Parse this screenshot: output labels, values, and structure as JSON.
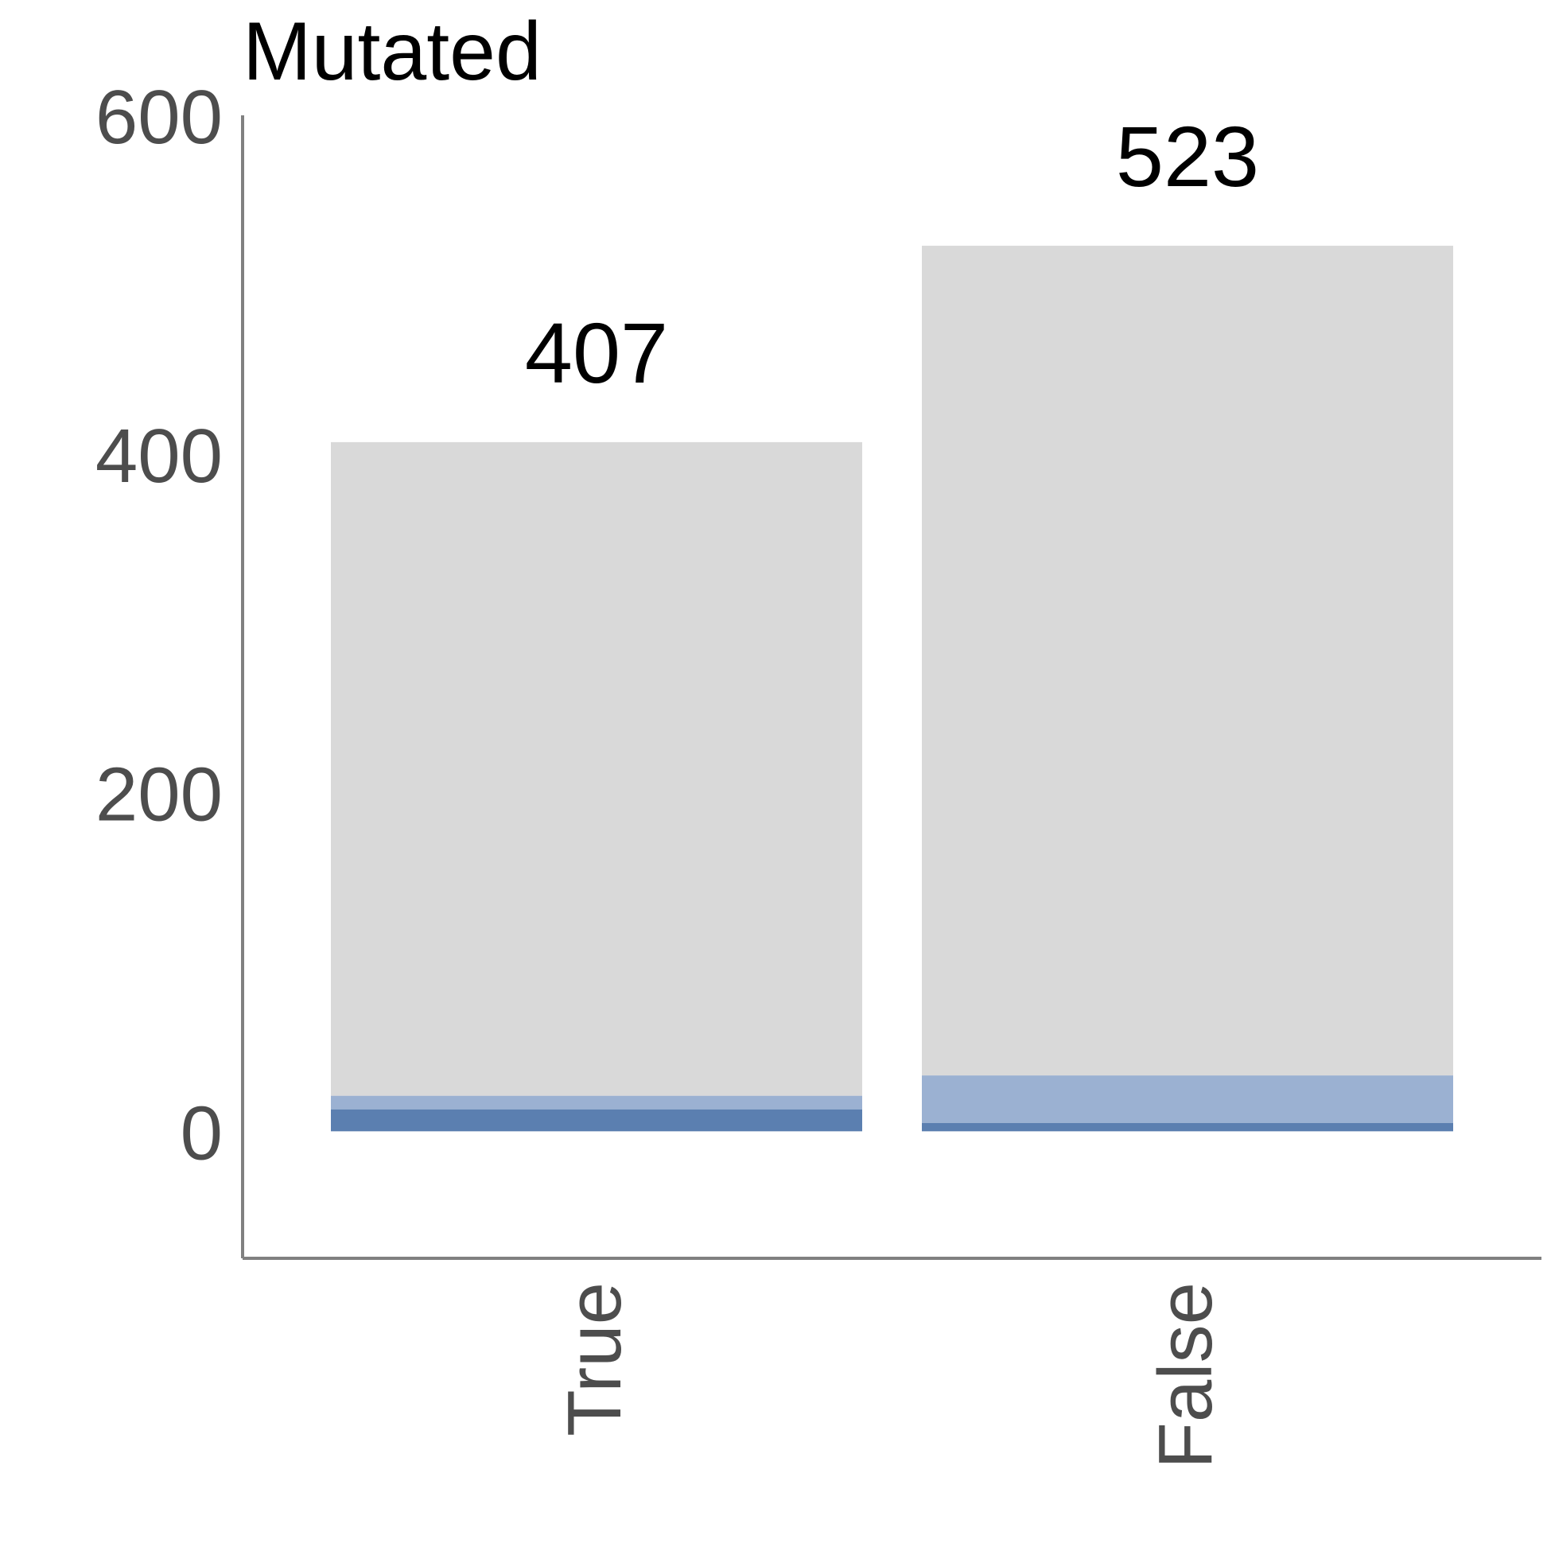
{
  "chart_data": {
    "type": "bar",
    "stacked": true,
    "title": "Mutated",
    "xlabel": "",
    "ylabel": "",
    "ylim": [
      -75,
      600
    ],
    "yticks": [
      0,
      200,
      400,
      600
    ],
    "categories": [
      "True",
      "False"
    ],
    "series": [
      {
        "values": [
          13,
          5
        ],
        "color": "#5b7fb0"
      },
      {
        "values": [
          8,
          28
        ],
        "color": "#9bb1d2"
      },
      {
        "values": [
          386,
          490
        ],
        "color": "#d9d9d9"
      }
    ],
    "totals": [
      407,
      523
    ],
    "grid": false,
    "axis_color": "#808080",
    "tick_label_orientation_x": "vertical"
  }
}
